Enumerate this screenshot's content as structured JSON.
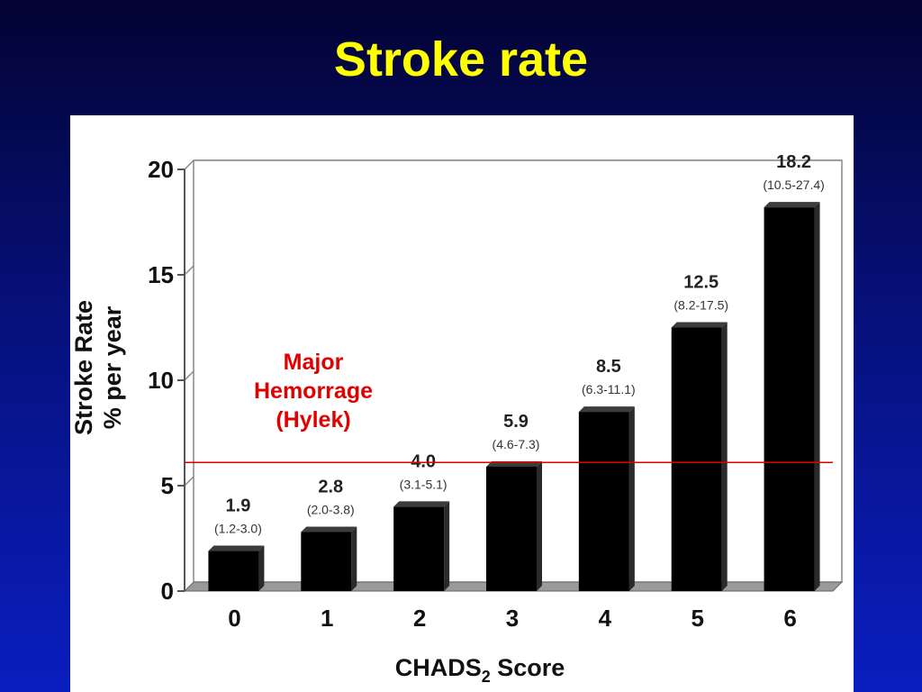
{
  "slide": {
    "title": "Stroke rate",
    "title_color": "#ffff00",
    "background_color": "#06107a"
  },
  "chart_data": {
    "type": "bar",
    "categories": [
      "0",
      "1",
      "2",
      "3",
      "4",
      "5",
      "6"
    ],
    "values": [
      1.9,
      2.8,
      4.0,
      5.9,
      8.5,
      12.5,
      18.2
    ],
    "value_labels": [
      "1.9",
      "2.8",
      "4.0",
      "5.9",
      "8.5",
      "12.5",
      "18.2"
    ],
    "ci_labels": [
      "(1.2-3.0)",
      "(2.0-3.8)",
      "(3.1-5.1)",
      "(4.6-7.3)",
      "(6.3-11.1)",
      "(8.2-17.5)",
      "(10.5-27.4)"
    ],
    "xlabel": "CHADS",
    "xlabel_subscript": "2",
    "xlabel_suffix": " Score",
    "ylabel_line1": "Stroke Rate",
    "ylabel_line2": "% per year",
    "ylim": [
      0,
      20
    ],
    "yticks": [
      "0",
      "5",
      "10",
      "15",
      "20"
    ],
    "grid": true,
    "bar_color": "#000000",
    "reference_line": {
      "value": 6.1,
      "label_lines": [
        "Major",
        "Hemorrage",
        "(Hylek)"
      ],
      "color": "#e00000"
    }
  }
}
